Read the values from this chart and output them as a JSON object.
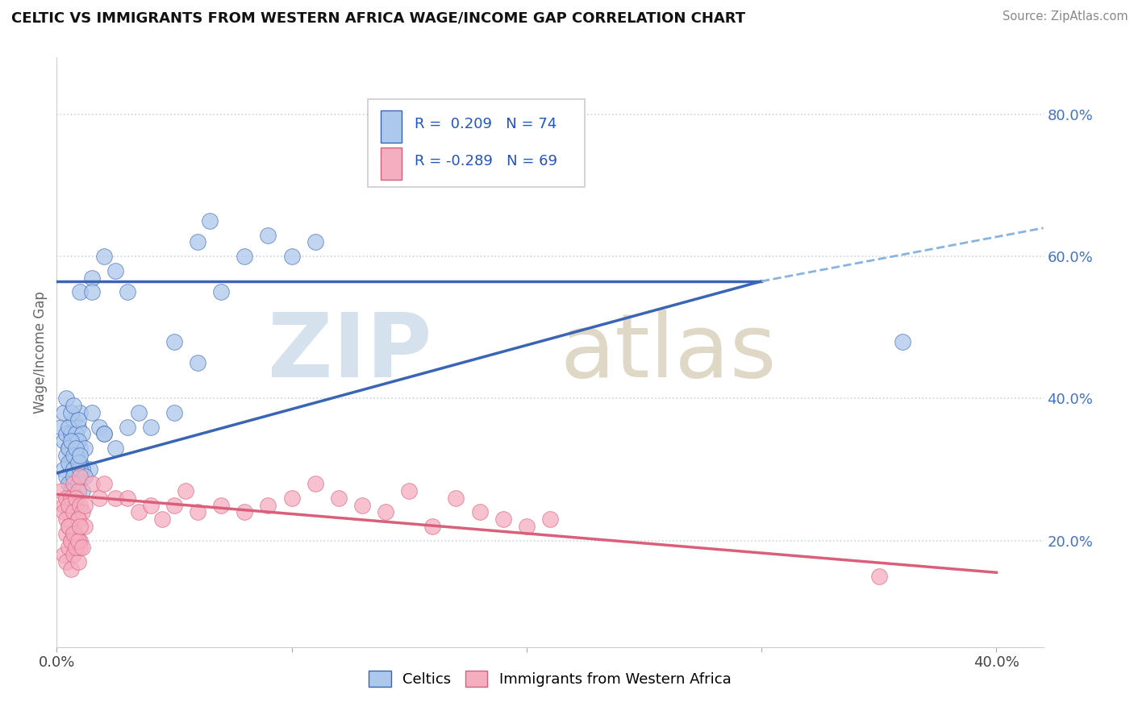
{
  "title": "CELTIC VS IMMIGRANTS FROM WESTERN AFRICA WAGE/INCOME GAP CORRELATION CHART",
  "source": "Source: ZipAtlas.com",
  "ylabel": "Wage/Income Gap",
  "xlim": [
    0.0,
    0.42
  ],
  "ylim": [
    0.05,
    0.88
  ],
  "xtick_vals": [
    0.0,
    0.1,
    0.2,
    0.3,
    0.4
  ],
  "xtick_labels": [
    "0.0%",
    "",
    "",
    "",
    "40.0%"
  ],
  "ytick_labels_right": [
    "20.0%",
    "40.0%",
    "60.0%",
    "80.0%"
  ],
  "ytick_vals_right": [
    0.2,
    0.4,
    0.6,
    0.8
  ],
  "blue_R": 0.209,
  "blue_N": 74,
  "pink_R": -0.289,
  "pink_N": 69,
  "blue_color": "#adc8ed",
  "pink_color": "#f5adc0",
  "blue_line_color": "#3a65b5",
  "pink_line_color": "#d9607a",
  "dashed_line_color": "#8ab4e0",
  "background_color": "#ffffff",
  "blue_trend": [
    0.0,
    0.3,
    0.565
  ],
  "blue_trend_dash_start": 0.3,
  "blue_trend_dash": [
    0.3,
    0.42,
    0.565,
    0.635
  ],
  "pink_trend": [
    0.0,
    0.4,
    0.265,
    0.155
  ],
  "blue_scatter_x": [
    0.002,
    0.003,
    0.004,
    0.005,
    0.006,
    0.007,
    0.008,
    0.009,
    0.01,
    0.003,
    0.004,
    0.005,
    0.006,
    0.007,
    0.008,
    0.009,
    0.01,
    0.011,
    0.004,
    0.005,
    0.006,
    0.007,
    0.008,
    0.009,
    0.01,
    0.012,
    0.014,
    0.003,
    0.004,
    0.005,
    0.006,
    0.007,
    0.008,
    0.009,
    0.01,
    0.011,
    0.005,
    0.006,
    0.007,
    0.008,
    0.009,
    0.01,
    0.011,
    0.012,
    0.006,
    0.007,
    0.008,
    0.009,
    0.01,
    0.015,
    0.018,
    0.02,
    0.01,
    0.015,
    0.02,
    0.025,
    0.03,
    0.035,
    0.04,
    0.05,
    0.06,
    0.065,
    0.07,
    0.08,
    0.09,
    0.1,
    0.11,
    0.015,
    0.02,
    0.025,
    0.03,
    0.05,
    0.06,
    0.36
  ],
  "blue_scatter_y": [
    0.36,
    0.34,
    0.35,
    0.33,
    0.35,
    0.37,
    0.34,
    0.36,
    0.38,
    0.38,
    0.4,
    0.36,
    0.38,
    0.39,
    0.35,
    0.37,
    0.33,
    0.35,
    0.32,
    0.33,
    0.31,
    0.3,
    0.32,
    0.34,
    0.31,
    0.33,
    0.3,
    0.3,
    0.29,
    0.31,
    0.28,
    0.3,
    0.32,
    0.29,
    0.31,
    0.3,
    0.28,
    0.27,
    0.29,
    0.26,
    0.28,
    0.3,
    0.27,
    0.29,
    0.34,
    0.32,
    0.33,
    0.31,
    0.32,
    0.38,
    0.36,
    0.35,
    0.55,
    0.57,
    0.6,
    0.58,
    0.55,
    0.38,
    0.36,
    0.38,
    0.62,
    0.65,
    0.55,
    0.6,
    0.63,
    0.6,
    0.62,
    0.55,
    0.35,
    0.33,
    0.36,
    0.48,
    0.45,
    0.48
  ],
  "pink_scatter_x": [
    0.002,
    0.003,
    0.004,
    0.005,
    0.006,
    0.007,
    0.008,
    0.009,
    0.01,
    0.003,
    0.004,
    0.005,
    0.006,
    0.007,
    0.008,
    0.009,
    0.01,
    0.011,
    0.004,
    0.005,
    0.006,
    0.007,
    0.008,
    0.009,
    0.01,
    0.012,
    0.003,
    0.004,
    0.005,
    0.006,
    0.007,
    0.008,
    0.009,
    0.01,
    0.005,
    0.006,
    0.007,
    0.008,
    0.009,
    0.01,
    0.011,
    0.012,
    0.015,
    0.018,
    0.02,
    0.025,
    0.03,
    0.035,
    0.04,
    0.045,
    0.05,
    0.055,
    0.06,
    0.07,
    0.08,
    0.09,
    0.1,
    0.11,
    0.12,
    0.13,
    0.14,
    0.15,
    0.16,
    0.17,
    0.18,
    0.19,
    0.2,
    0.21,
    0.35
  ],
  "pink_scatter_y": [
    0.27,
    0.25,
    0.26,
    0.24,
    0.26,
    0.28,
    0.25,
    0.27,
    0.29,
    0.24,
    0.23,
    0.25,
    0.22,
    0.24,
    0.26,
    0.23,
    0.25,
    0.24,
    0.21,
    0.22,
    0.2,
    0.19,
    0.21,
    0.23,
    0.2,
    0.22,
    0.18,
    0.17,
    0.19,
    0.16,
    0.18,
    0.2,
    0.17,
    0.19,
    0.22,
    0.2,
    0.21,
    0.19,
    0.2,
    0.22,
    0.19,
    0.25,
    0.28,
    0.26,
    0.28,
    0.26,
    0.26,
    0.24,
    0.25,
    0.23,
    0.25,
    0.27,
    0.24,
    0.25,
    0.24,
    0.25,
    0.26,
    0.28,
    0.26,
    0.25,
    0.24,
    0.27,
    0.22,
    0.26,
    0.24,
    0.23,
    0.22,
    0.23,
    0.15
  ]
}
